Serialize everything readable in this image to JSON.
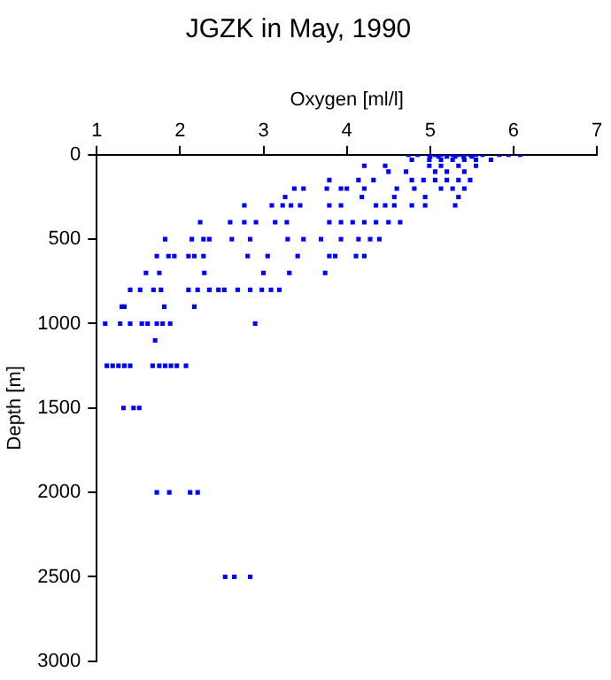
{
  "chart_data": {
    "type": "scatter",
    "title": "JGZK in May, 1990",
    "xlabel": "Oxygen [ml/l]",
    "ylabel": "Depth [m]",
    "xlim": [
      1,
      7
    ],
    "xticks": [
      1,
      2,
      3,
      4,
      5,
      6,
      7
    ],
    "ylim": [
      3000,
      0
    ],
    "yticks": [
      0,
      500,
      1000,
      1500,
      2000,
      2500,
      3000
    ],
    "x": [
      4.74,
      4.85,
      4.99,
      5.06,
      5.13,
      5.2,
      5.27,
      5.34,
      5.41,
      5.48,
      5.55,
      5.63,
      5.83,
      5.94,
      6.08,
      5.0,
      5.1,
      5.2,
      5.3,
      5.4,
      5.5,
      4.78,
      4.99,
      5.13,
      5.27,
      5.41,
      5.55,
      5.73,
      4.21,
      4.46,
      4.99,
      5.13,
      5.34,
      5.55,
      4.5,
      4.71,
      5.06,
      5.2,
      5.41,
      3.79,
      4.14,
      4.32,
      4.78,
      4.92,
      5.06,
      5.2,
      5.34,
      5.48,
      3.37,
      3.48,
      3.76,
      3.93,
      4.0,
      4.21,
      4.6,
      4.81,
      5.13,
      5.27,
      5.41,
      3.26,
      4.18,
      4.57,
      4.94,
      5.34,
      2.77,
      3.1,
      3.23,
      3.33,
      3.44,
      3.79,
      3.93,
      4.35,
      4.46,
      4.57,
      4.78,
      4.94,
      5.3,
      2.24,
      2.6,
      2.77,
      2.91,
      3.14,
      3.28,
      3.79,
      3.93,
      4.07,
      4.21,
      4.35,
      4.5,
      4.64,
      1.82,
      2.14,
      2.28,
      2.35,
      2.62,
      2.84,
      3.29,
      3.48,
      3.69,
      3.93,
      4.14,
      4.28,
      4.39,
      1.72,
      1.86,
      1.93,
      2.1,
      2.17,
      2.28,
      2.81,
      3.05,
      3.41,
      3.79,
      3.86,
      4.11,
      4.21,
      1.59,
      1.75,
      2.29,
      3.0,
      3.31,
      3.74,
      1.4,
      1.52,
      1.68,
      1.77,
      2.1,
      2.21,
      2.35,
      2.46,
      2.53,
      2.69,
      2.84,
      2.98,
      3.09,
      3.19,
      1.3,
      1.33,
      1.81,
      2.17,
      1.1,
      1.28,
      1.4,
      1.54,
      1.61,
      1.72,
      1.79,
      1.88,
      2.9,
      1.7,
      1.12,
      1.19,
      1.26,
      1.33,
      1.4,
      1.67,
      1.75,
      1.82,
      1.89,
      1.96,
      2.07,
      1.32,
      1.44,
      1.51,
      1.72,
      1.87,
      2.12,
      2.21,
      2.54,
      2.65,
      2.84
    ],
    "values": [
      0,
      0,
      0,
      0,
      0,
      0,
      0,
      0,
      0,
      0,
      0,
      0,
      0,
      0,
      0,
      10,
      10,
      10,
      10,
      10,
      10,
      30,
      30,
      30,
      30,
      30,
      30,
      30,
      65,
      65,
      65,
      65,
      65,
      65,
      100,
      100,
      100,
      100,
      100,
      150,
      150,
      150,
      150,
      150,
      150,
      150,
      150,
      150,
      200,
      200,
      200,
      200,
      200,
      200,
      200,
      200,
      200,
      200,
      200,
      250,
      250,
      250,
      250,
      250,
      300,
      300,
      300,
      300,
      300,
      300,
      300,
      300,
      300,
      300,
      300,
      300,
      300,
      400,
      400,
      400,
      400,
      400,
      400,
      400,
      400,
      400,
      400,
      400,
      400,
      400,
      500,
      500,
      500,
      500,
      500,
      500,
      500,
      500,
      500,
      500,
      500,
      500,
      500,
      600,
      600,
      600,
      600,
      600,
      600,
      600,
      600,
      600,
      600,
      600,
      600,
      600,
      700,
      700,
      700,
      700,
      700,
      700,
      800,
      800,
      800,
      800,
      800,
      800,
      800,
      800,
      800,
      800,
      800,
      800,
      800,
      800,
      900,
      900,
      900,
      900,
      1000,
      1000,
      1000,
      1000,
      1000,
      1000,
      1000,
      1000,
      1000,
      1100,
      1250,
      1250,
      1250,
      1250,
      1250,
      1250,
      1250,
      1250,
      1250,
      1250,
      1250,
      1500,
      1500,
      1500,
      2000,
      2000,
      2000,
      2000,
      2500,
      2500,
      2500
    ],
    "color": "#0000ff",
    "marker": "square",
    "grid": false,
    "legend": false
  }
}
